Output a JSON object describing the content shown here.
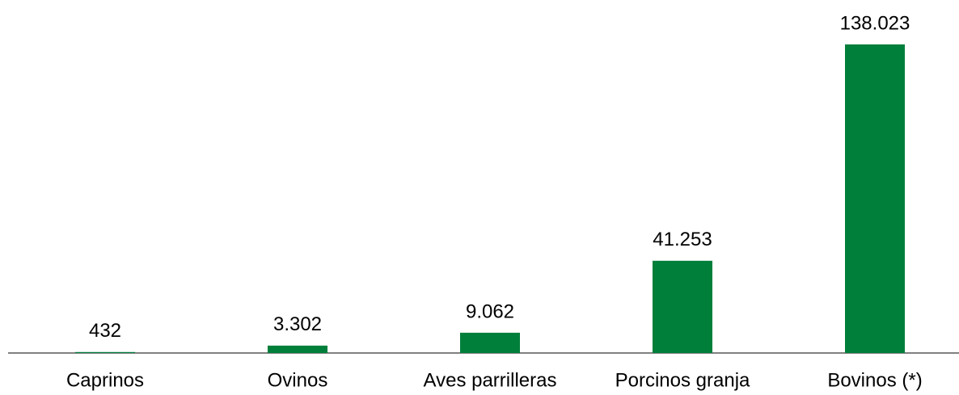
{
  "chart_data": {
    "type": "bar",
    "categories": [
      "Caprinos",
      "Ovinos",
      "Aves parrilleras",
      "Porcinos granja",
      "Bovinos (*)"
    ],
    "values": [
      432,
      3302,
      9062,
      41253,
      138023
    ],
    "value_labels": [
      "432",
      "3.302",
      "9.062",
      "41.253",
      "138.023"
    ],
    "color": "#007f3b"
  }
}
